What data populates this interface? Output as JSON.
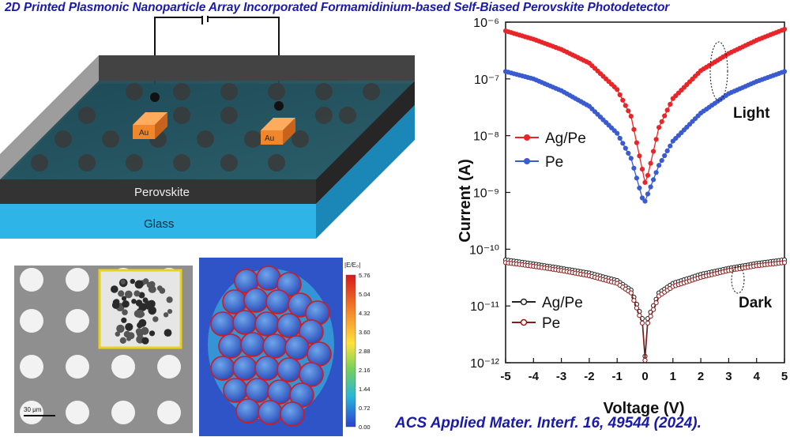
{
  "title": "2D Printed Plasmonic Nanoparticle Array Incorporated Formamidinium-based Self-Biased Perovskite Photodetector",
  "citation": "ACS Applied Mater. Interf. 16, 49544 (2024).",
  "device": {
    "electrode_left": "Au",
    "electrode_right": "Au",
    "layer_top": "Perovskite",
    "layer_bottom": "Glass"
  },
  "sem": {
    "scale_bar": "30 μm"
  },
  "field_map": {
    "colorbar_title": "|E/E₀|",
    "colorbar_ticks": [
      "5.76",
      "5.04",
      "4.32",
      "3.60",
      "2.88",
      "2.16",
      "1.44",
      "0.72",
      "0.00"
    ]
  },
  "chart_data": {
    "type": "line",
    "xlabel": "Voltage (V)",
    "ylabel": "Current (A)",
    "xlim": [
      -5,
      5
    ],
    "ylim": [
      1e-12,
      1e-06
    ],
    "yscale": "log",
    "xticks": [
      "-5",
      "-4",
      "-3",
      "-2",
      "-1",
      "0",
      "1",
      "2",
      "3",
      "4",
      "5"
    ],
    "yticks": [
      "10⁻⁶",
      "10⁻⁷",
      "10⁻⁸",
      "10⁻⁹",
      "10⁻¹⁰",
      "10⁻¹¹",
      "10⁻¹²"
    ],
    "annotations": [
      "Light",
      "Dark"
    ],
    "legend_light": [
      "Ag/Pe",
      "Pe"
    ],
    "legend_dark": [
      "Ag/Pe",
      "Pe"
    ],
    "colors": {
      "ag_light": "#e8262a",
      "pe_light": "#3b5bd0",
      "ag_dark": "#222222",
      "pe_dark": "#8b1a1a"
    },
    "series": [
      {
        "name": "Ag/Pe",
        "condition": "Light",
        "x": [
          -5,
          -4,
          -3,
          -2,
          -1,
          -0.5,
          0,
          0.1,
          0.5,
          1,
          2,
          3,
          4,
          5
        ],
        "y": [
          7e-07,
          5e-07,
          3.3e-07,
          1.9e-07,
          6.5e-08,
          2.2e-08,
          1.5e-09,
          2e-09,
          1.4e-08,
          4.5e-08,
          1.4e-07,
          2.8e-07,
          4.8e-07,
          7.5e-07
        ]
      },
      {
        "name": "Pe",
        "condition": "Light",
        "x": [
          -5,
          -4,
          -3,
          -2,
          -1,
          -0.5,
          -0.1,
          0,
          0.5,
          1,
          2,
          3,
          4,
          5
        ],
        "y": [
          1.35e-07,
          1e-07,
          6.2e-08,
          3.3e-08,
          1.1e-08,
          4e-09,
          8e-10,
          7e-10,
          3e-09,
          8e-09,
          2.5e-08,
          5.5e-08,
          9e-08,
          1.35e-07
        ]
      },
      {
        "name": "Ag/Pe",
        "condition": "Dark",
        "x": [
          -5,
          -4,
          -3,
          -2,
          -1,
          -0.5,
          -0.1,
          0,
          0.1,
          0.5,
          1,
          2,
          3,
          4,
          5
        ],
        "y": [
          6.5e-11,
          5.5e-11,
          4.6e-11,
          3.8e-11,
          2.8e-11,
          1.9e-11,
          6e-12,
          1.3e-12,
          6e-12,
          1.7e-11,
          2.5e-11,
          3.6e-11,
          4.6e-11,
          5.6e-11,
          6.5e-11
        ]
      },
      {
        "name": "Pe",
        "condition": "Dark",
        "x": [
          -5,
          -4,
          -3,
          -2,
          -1,
          -0.5,
          -0.1,
          0,
          0.1,
          0.5,
          1,
          2,
          3,
          4,
          5
        ],
        "y": [
          5.8e-11,
          5e-11,
          4.2e-11,
          3.4e-11,
          2.5e-11,
          1.7e-11,
          5e-12,
          1.1e-12,
          5e-12,
          1.5e-11,
          2.2e-11,
          3.2e-11,
          4.2e-11,
          5.1e-11,
          5.8e-11
        ]
      }
    ]
  }
}
